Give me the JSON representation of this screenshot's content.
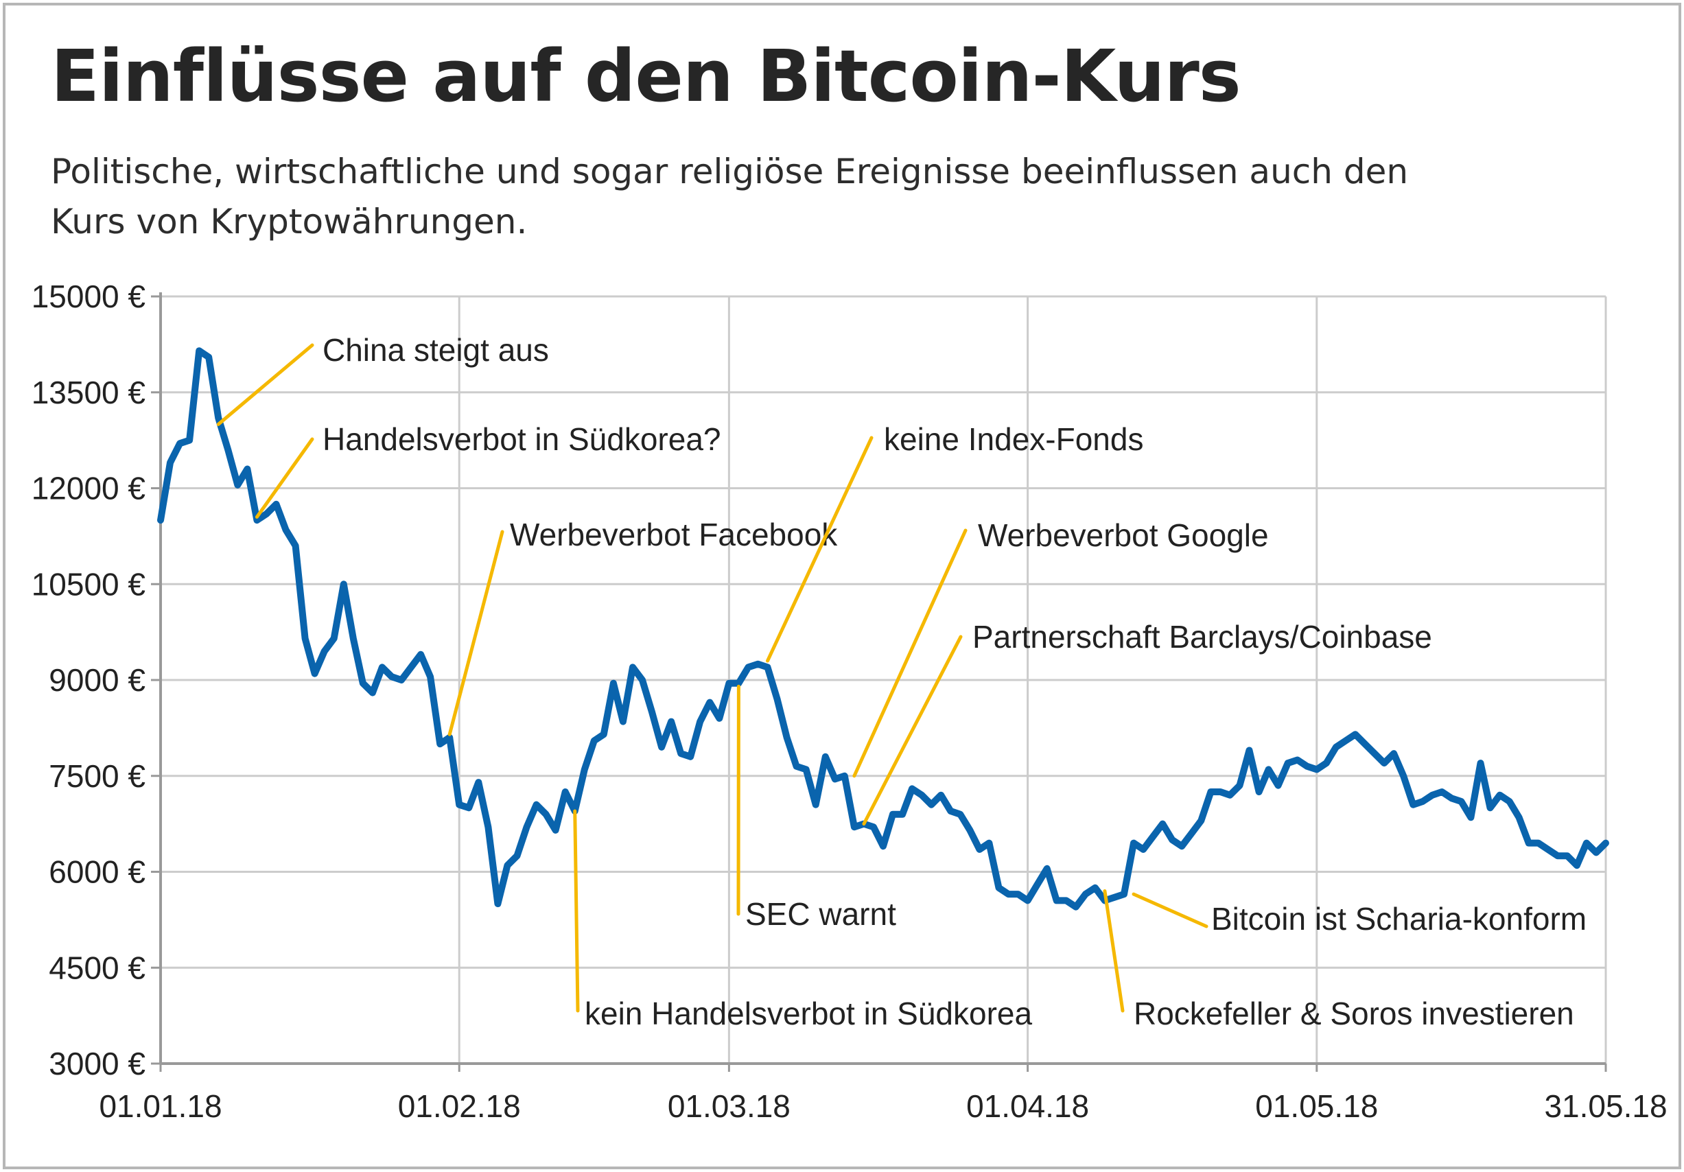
{
  "title": "Einflüsse auf den Bitcoin-Kurs",
  "subtitle": "Politische, wirtschaftliche und sogar religiöse Ereignisse beeinflussen auch den Kurs von Kryptowährungen.",
  "colors": {
    "line": "#0a64ad",
    "annotation": "#f5b800",
    "grid": "#cccccc",
    "axis": "#999999",
    "text": "#222222"
  },
  "chart_data": {
    "type": "line",
    "title": "Einflüsse auf den Bitcoin-Kurs",
    "xlabel": "",
    "ylabel": "",
    "ylim": [
      3000,
      15000
    ],
    "xlim": [
      "2018-01-01",
      "2018-05-31"
    ],
    "grid": true,
    "y_ticks": [
      15000,
      13500,
      12000,
      10500,
      9000,
      7500,
      6000,
      4500,
      3000
    ],
    "y_tick_labels": [
      "15000 €",
      "13500 €",
      "12000 €",
      "10500 €",
      "9000 €",
      "7500 €",
      "6000 €",
      "4500 €",
      "3000 €"
    ],
    "x_ticks": [
      "2018-01-01",
      "2018-02-01",
      "2018-03-01",
      "2018-04-01",
      "2018-05-01",
      "2018-05-31"
    ],
    "x_tick_labels": [
      "01.01.18",
      "01.02.18",
      "01.03.18",
      "01.04.18",
      "01.05.18",
      "31.05.18"
    ],
    "series": [
      {
        "x": [
          "2018-01-01",
          "2018-01-02",
          "2018-01-03",
          "2018-01-04",
          "2018-01-05",
          "2018-01-06",
          "2018-01-07",
          "2018-01-08",
          "2018-01-09",
          "2018-01-10",
          "2018-01-11",
          "2018-01-12",
          "2018-01-13",
          "2018-01-14",
          "2018-01-15",
          "2018-01-16",
          "2018-01-17",
          "2018-01-18",
          "2018-01-19",
          "2018-01-20",
          "2018-01-21",
          "2018-01-22",
          "2018-01-23",
          "2018-01-24",
          "2018-01-25",
          "2018-01-26",
          "2018-01-27",
          "2018-01-28",
          "2018-01-29",
          "2018-01-30",
          "2018-01-31",
          "2018-02-01",
          "2018-02-02",
          "2018-02-03",
          "2018-02-04",
          "2018-02-05",
          "2018-02-06",
          "2018-02-07",
          "2018-02-08",
          "2018-02-09",
          "2018-02-10",
          "2018-02-11",
          "2018-02-12",
          "2018-02-13",
          "2018-02-14",
          "2018-02-15",
          "2018-02-16",
          "2018-02-17",
          "2018-02-18",
          "2018-02-19",
          "2018-02-20",
          "2018-02-21",
          "2018-02-22",
          "2018-02-23",
          "2018-02-24",
          "2018-02-25",
          "2018-02-26",
          "2018-02-27",
          "2018-02-28",
          "2018-03-01",
          "2018-03-02",
          "2018-03-03",
          "2018-03-04",
          "2018-03-05",
          "2018-03-06",
          "2018-03-07",
          "2018-03-08",
          "2018-03-09",
          "2018-03-10",
          "2018-03-11",
          "2018-03-12",
          "2018-03-13",
          "2018-03-14",
          "2018-03-15",
          "2018-03-16",
          "2018-03-17",
          "2018-03-18",
          "2018-03-19",
          "2018-03-20",
          "2018-03-21",
          "2018-03-22",
          "2018-03-23",
          "2018-03-24",
          "2018-03-25",
          "2018-03-26",
          "2018-03-27",
          "2018-03-28",
          "2018-03-29",
          "2018-03-30",
          "2018-03-31",
          "2018-04-01",
          "2018-04-02",
          "2018-04-03",
          "2018-04-04",
          "2018-04-05",
          "2018-04-06",
          "2018-04-07",
          "2018-04-08",
          "2018-04-09",
          "2018-04-10",
          "2018-04-11",
          "2018-04-12",
          "2018-04-13",
          "2018-04-14",
          "2018-04-15",
          "2018-04-16",
          "2018-04-17",
          "2018-04-18",
          "2018-04-19",
          "2018-04-20",
          "2018-04-21",
          "2018-04-22",
          "2018-04-23",
          "2018-04-24",
          "2018-04-25",
          "2018-04-26",
          "2018-04-27",
          "2018-04-28",
          "2018-04-29",
          "2018-04-30",
          "2018-05-01",
          "2018-05-02",
          "2018-05-03",
          "2018-05-04",
          "2018-05-05",
          "2018-05-06",
          "2018-05-07",
          "2018-05-08",
          "2018-05-09",
          "2018-05-10",
          "2018-05-11",
          "2018-05-12",
          "2018-05-13",
          "2018-05-14",
          "2018-05-15",
          "2018-05-16",
          "2018-05-17",
          "2018-05-18",
          "2018-05-19",
          "2018-05-20",
          "2018-05-21",
          "2018-05-22",
          "2018-05-23",
          "2018-05-24",
          "2018-05-25",
          "2018-05-26",
          "2018-05-27",
          "2018-05-28",
          "2018-05-29",
          "2018-05-30",
          "2018-05-31"
        ],
        "values": [
          11500,
          12400,
          12700,
          12750,
          14150,
          14050,
          13100,
          12600,
          12050,
          12300,
          11500,
          11600,
          11750,
          11350,
          11100,
          9650,
          9100,
          9450,
          9650,
          10500,
          9650,
          8950,
          8800,
          9200,
          9050,
          9000,
          9200,
          9400,
          9050,
          8000,
          8100,
          7050,
          7000,
          7400,
          6700,
          5500,
          6100,
          6250,
          6700,
          7050,
          6900,
          6650,
          7250,
          6950,
          7600,
          8050,
          8150,
          8950,
          8350,
          9200,
          9000,
          8500,
          7950,
          8350,
          7850,
          7800,
          8350,
          8650,
          8400,
          8950,
          8950,
          9200,
          9250,
          9200,
          8700,
          8100,
          7650,
          7600,
          7050,
          7800,
          7450,
          7500,
          6700,
          6750,
          6700,
          6400,
          6900,
          6900,
          7300,
          7200,
          7050,
          7200,
          6950,
          6900,
          6650,
          6350,
          6450,
          5750,
          5650,
          5650,
          5550,
          5800,
          6050,
          5550,
          5550,
          5450,
          5650,
          5750,
          5550,
          5600,
          5650,
          6450,
          6350,
          6550,
          6750,
          6500,
          6400,
          6600,
          6800,
          7250,
          7250,
          7200,
          7350,
          7900,
          7250,
          7600,
          7350,
          7700,
          7750,
          7650,
          7600,
          7700,
          7950,
          8050,
          8150,
          8000,
          7850,
          7700,
          7850,
          7500,
          7050,
          7100,
          7200,
          7250,
          7150,
          7100,
          6850,
          7700,
          7000,
          7200,
          7100,
          6850,
          6450,
          6450,
          6350,
          6250,
          6250,
          6100,
          6450,
          6300,
          6450
        ]
      }
    ],
    "annotations": [
      {
        "label": "China steigt aus",
        "date": "2018-01-07",
        "value": 13000
      },
      {
        "label": "Handelsverbot in Südkorea?",
        "date": "2018-01-11",
        "value": 11550
      },
      {
        "label": "Werbeverbot Facebook",
        "date": "2018-01-31",
        "value": 8150
      },
      {
        "label": "kein Handelsverbot in Südkorea",
        "date": "2018-02-13",
        "value": 6950
      },
      {
        "label": "SEC warnt",
        "date": "2018-03-02",
        "value": 8900
      },
      {
        "label": "keine Index-Fonds",
        "date": "2018-03-05",
        "value": 9300
      },
      {
        "label": "Werbeverbot Google",
        "date": "2018-03-14",
        "value": 7500
      },
      {
        "label": "Partnerschaft Barclays/Coinbase",
        "date": "2018-03-15",
        "value": 6750
      },
      {
        "label": "Rockefeller & Soros investieren",
        "date": "2018-04-09",
        "value": 5700
      },
      {
        "label": "Bitcoin ist Scharia-konform",
        "date": "2018-04-12",
        "value": 5650
      }
    ]
  }
}
